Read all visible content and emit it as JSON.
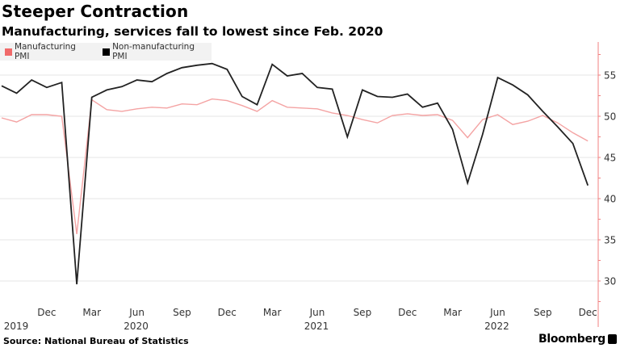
{
  "chart_data": {
    "type": "line",
    "title": "Steeper Contraction",
    "subtitle": "Manufacturing, services fall to lowest since Feb. 2020",
    "source": "Source: National Bureau of Statistics",
    "brand": "Bloomberg",
    "xlabel": "",
    "ylabel": "",
    "ylim": [
      27.5,
      59
    ],
    "yticks": [
      30,
      35,
      40,
      45,
      50,
      55
    ],
    "y_axis_position": "right",
    "grid": true,
    "legend_position": "top-left",
    "x": [
      "2019-09",
      "2019-10",
      "2019-11",
      "2019-12",
      "2020-01",
      "2020-02",
      "2020-03",
      "2020-04",
      "2020-05",
      "2020-06",
      "2020-07",
      "2020-08",
      "2020-09",
      "2020-10",
      "2020-11",
      "2020-12",
      "2021-01",
      "2021-02",
      "2021-03",
      "2021-04",
      "2021-05",
      "2021-06",
      "2021-07",
      "2021-08",
      "2021-09",
      "2021-10",
      "2021-11",
      "2021-12",
      "2022-01",
      "2022-02",
      "2022-03",
      "2022-04",
      "2022-05",
      "2022-06",
      "2022-07",
      "2022-08",
      "2022-09",
      "2022-10",
      "2022-11",
      "2022-12"
    ],
    "xtick_labels": [
      {
        "label": "Dec",
        "year": "2019",
        "index": 3
      },
      {
        "label": "Mar",
        "year": "",
        "index": 6
      },
      {
        "label": "Jun",
        "year": "2020",
        "index": 9
      },
      {
        "label": "Sep",
        "year": "",
        "index": 12
      },
      {
        "label": "Dec",
        "year": "",
        "index": 15
      },
      {
        "label": "Mar",
        "year": "",
        "index": 18
      },
      {
        "label": "Jun",
        "year": "2021",
        "index": 21
      },
      {
        "label": "Sep",
        "year": "",
        "index": 24
      },
      {
        "label": "Dec",
        "year": "",
        "index": 27
      },
      {
        "label": "Mar",
        "year": "",
        "index": 30
      },
      {
        "label": "Jun",
        "year": "2022",
        "index": 33
      },
      {
        "label": "Sep",
        "year": "",
        "index": 36
      },
      {
        "label": "Dec",
        "year": "",
        "index": 39
      }
    ],
    "series": [
      {
        "name": "Manufacturing PMI",
        "color": "#f4a3a3",
        "legend_color": "#f06a6a",
        "values": [
          49.8,
          49.3,
          50.2,
          50.2,
          50.0,
          35.7,
          52.0,
          50.8,
          50.6,
          50.9,
          51.1,
          51.0,
          51.5,
          51.4,
          52.1,
          51.9,
          51.3,
          50.6,
          51.9,
          51.1,
          51.0,
          50.9,
          50.4,
          50.1,
          49.6,
          49.2,
          50.1,
          50.3,
          50.1,
          50.2,
          49.5,
          47.4,
          49.6,
          50.2,
          49.0,
          49.4,
          50.1,
          49.2,
          48.0,
          47.0
        ]
      },
      {
        "name": "Non-manufacturing PMI",
        "color": "#222222",
        "legend_color": "#000000",
        "values": [
          53.7,
          52.8,
          54.4,
          53.5,
          54.1,
          29.6,
          52.3,
          53.2,
          53.6,
          54.4,
          54.2,
          55.2,
          55.9,
          56.2,
          56.4,
          55.7,
          52.4,
          51.4,
          56.3,
          54.9,
          55.2,
          53.5,
          53.3,
          47.5,
          53.2,
          52.4,
          52.3,
          52.7,
          51.1,
          51.6,
          48.4,
          41.9,
          47.8,
          54.7,
          53.8,
          52.6,
          50.6,
          48.7,
          46.7,
          41.6
        ]
      }
    ]
  }
}
